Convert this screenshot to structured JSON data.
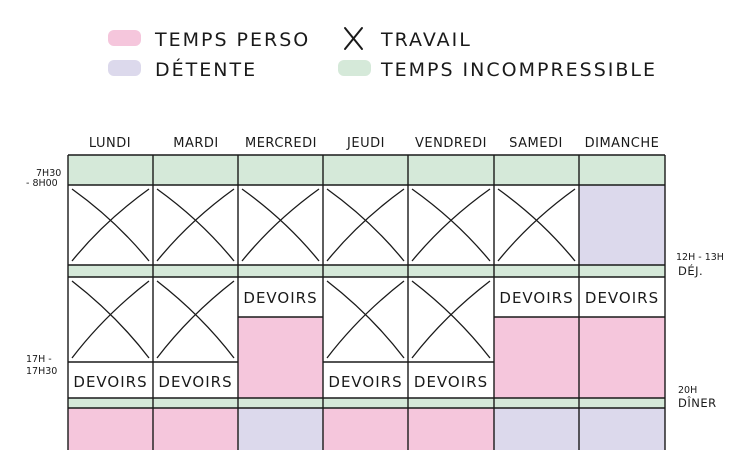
{
  "legend": {
    "temps_perso": "TEMPS PERSO",
    "travail": "TRAVAIL",
    "detente": "DÉTENTE",
    "temps_incompressible": "TEMPS INCOMPRESSIBLE",
    "travail_icon": "cross-icon"
  },
  "days": [
    "LUNDI",
    "MARDI",
    "MERCREDI",
    "JEUDI",
    "VENDREDI",
    "SAMEDI",
    "DIMANCHE"
  ],
  "time_labels": {
    "morning_1": "7H30",
    "morning_2": "- 8H00",
    "afternoon_1": "17H -",
    "afternoon_2": "17H30",
    "lunch_time": "12H - 13H",
    "lunch": "DÉJ.",
    "dinner_time": "20H",
    "dinner": "DÎNER"
  },
  "devoirs_label": "DEVOIRS",
  "colors": {
    "temps_perso": "#f5c6dc",
    "detente": "#dcd9ec",
    "temps_incompressible": "#d5e9d9",
    "travail": "#ffffff",
    "ink": "#1a1a1a"
  },
  "schedule": {
    "block_order": [
      "morning",
      "am",
      "lunch",
      "pm_top",
      "pm_bottom",
      "dinner",
      "evening"
    ],
    "LUNDI": {
      "morning": "temps_incompressible",
      "am": "travail",
      "lunch": "temps_incompressible",
      "pm_top": "travail",
      "pm_bottom": "devoirs",
      "dinner": "temps_incompressible",
      "evening": "temps_perso"
    },
    "MARDI": {
      "morning": "temps_incompressible",
      "am": "travail",
      "lunch": "temps_incompressible",
      "pm_top": "travail",
      "pm_bottom": "devoirs",
      "dinner": "temps_incompressible",
      "evening": "temps_perso"
    },
    "MERCREDI": {
      "morning": "temps_incompressible",
      "am": "travail",
      "lunch": "temps_incompressible",
      "pm_top": "devoirs",
      "pm_bottom": "temps_perso",
      "dinner": "temps_incompressible",
      "evening": "detente"
    },
    "JEUDI": {
      "morning": "temps_incompressible",
      "am": "travail",
      "lunch": "temps_incompressible",
      "pm_top": "travail",
      "pm_bottom": "devoirs",
      "dinner": "temps_incompressible",
      "evening": "temps_perso"
    },
    "VENDREDI": {
      "morning": "temps_incompressible",
      "am": "travail",
      "lunch": "temps_incompressible",
      "pm_top": "travail",
      "pm_bottom": "devoirs",
      "dinner": "temps_incompressible",
      "evening": "temps_perso"
    },
    "SAMEDI": {
      "morning": "temps_incompressible",
      "am": "travail",
      "lunch": "temps_incompressible",
      "pm_top": "devoirs",
      "pm_bottom": "temps_perso",
      "dinner": "temps_incompressible",
      "evening": "detente"
    },
    "DIMANCHE": {
      "morning": "temps_incompressible",
      "am": "detente",
      "lunch": "temps_incompressible",
      "pm_top": "devoirs",
      "pm_bottom": "temps_perso",
      "dinner": "temps_incompressible",
      "evening": "detente"
    }
  }
}
